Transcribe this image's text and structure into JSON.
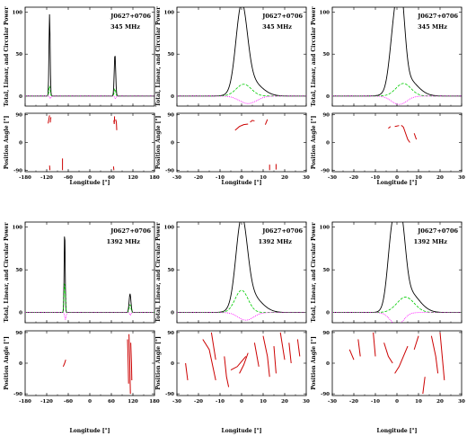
{
  "chart_data": [
    {
      "type": "line",
      "source": "J0627+0706",
      "frequency": "345 MHz",
      "xlim": [
        -180,
        180
      ],
      "xticks": [
        -180,
        -120,
        -60,
        0,
        60,
        120,
        180
      ],
      "xlabel": "Longitude [°]",
      "top": {
        "ylabel": "Total, Linear, and Circular Power",
        "ylim": [
          -12,
          106
        ],
        "yticks": [
          0,
          50,
          100
        ],
        "series": [
          {
            "name": "",
            "color": "#000000",
            "style": "solid",
            "components": [
              {
                "c": -112,
                "w": 1.6,
                "a": 98
              },
              {
                "c": 70,
                "w": 2.0,
                "a": 50
              }
            ]
          },
          {
            "name": "",
            "color": "#00cc00",
            "style": "dashed",
            "components": [
              {
                "c": -112,
                "w": 1.8,
                "a": 12
              },
              {
                "c": 70,
                "w": 2.0,
                "a": 9
              }
            ]
          },
          {
            "name": "",
            "color": "#ff00ff",
            "style": "dotted",
            "components": [
              {
                "c": -110,
                "w": 2.0,
                "a": -3
              },
              {
                "c": 71,
                "w": 2.0,
                "a": -3
              }
            ]
          }
        ]
      },
      "bottom": {
        "ylabel": "Position Angle [°]",
        "ylim": [
          -95,
          95
        ],
        "yticks": [
          -90,
          0,
          90
        ],
        "pa_segments": [
          [
            [
              -116,
              62
            ],
            [
              -114,
              75
            ],
            [
              -112,
              88
            ]
          ],
          [
            [
              -110,
              65
            ],
            [
              -109,
              78
            ],
            [
              -108,
              82
            ]
          ],
          [
            [
              -112,
              -75
            ],
            [
              -111,
              -90
            ]
          ],
          [
            [
              -76,
              -52
            ],
            [
              -76,
              -90
            ]
          ],
          [
            [
              67,
              72
            ],
            [
              68,
              60
            ],
            [
              69,
              85
            ]
          ],
          [
            [
              72,
              75
            ],
            [
              74,
              65
            ],
            [
              75,
              40
            ]
          ],
          [
            [
              66,
              -78
            ],
            [
              67,
              -90
            ]
          ]
        ]
      }
    },
    {
      "type": "line",
      "source": "J0627+0706",
      "frequency": "345 MHz",
      "xlim": [
        -30,
        30
      ],
      "xticks": [
        -30,
        -20,
        -10,
        0,
        10,
        20,
        30
      ],
      "xlabel": "Longitude [°]",
      "top": {
        "ylabel": "Total, Linear, and Circular Power",
        "ylim": [
          -12,
          106
        ],
        "yticks": [
          0,
          50,
          100
        ],
        "series": [
          {
            "name": "",
            "color": "#000000",
            "style": "solid",
            "components": [
              {
                "c": 0,
                "w": 2.6,
                "a": 98
              },
              {
                "c": 4,
                "w": 5,
                "a": 18
              }
            ]
          },
          {
            "name": "",
            "color": "#00cc00",
            "style": "dashed",
            "components": [
              {
                "c": 1,
                "w": 3.5,
                "a": 14
              }
            ]
          },
          {
            "name": "",
            "color": "#ff00ff",
            "style": "dotted",
            "components": [
              {
                "c": 3,
                "w": 4,
                "a": -9
              }
            ]
          }
        ]
      },
      "bottom": {
        "ylabel": "Position Angle [°]",
        "ylim": [
          -95,
          95
        ],
        "yticks": [
          -90,
          0,
          90
        ],
        "pa_segments": [
          [
            [
              -3,
              40
            ],
            [
              -1,
              52
            ],
            [
              1,
              58
            ],
            [
              3,
              60
            ]
          ],
          [
            [
              4,
              66
            ],
            [
              5,
              72
            ],
            [
              6,
              70
            ]
          ],
          [
            [
              11,
              58
            ],
            [
              12,
              75
            ]
          ],
          [
            [
              13,
              -72
            ],
            [
              13,
              -90
            ]
          ],
          [
            [
              16,
              -70
            ],
            [
              16,
              -88
            ]
          ]
        ]
      }
    },
    {
      "type": "line",
      "source": "J0627+0706",
      "frequency": "345 MHz",
      "xlim": [
        -30,
        30
      ],
      "xticks": [
        -30,
        -20,
        -10,
        0,
        10,
        20,
        30
      ],
      "xlabel": "Longitude [°]",
      "top": {
        "ylabel": "Total, Linear, and Circular Power",
        "ylim": [
          -12,
          106
        ],
        "yticks": [
          0,
          50,
          100
        ],
        "series": [
          {
            "name": "",
            "color": "#000000",
            "style": "solid",
            "components": [
              {
                "c": -1,
                "w": 2.2,
                "a": 75
              },
              {
                "c": 2,
                "w": 1.8,
                "a": 80
              },
              {
                "c": 4,
                "w": 5,
                "a": 22
              }
            ]
          },
          {
            "name": "",
            "color": "#00cc00",
            "style": "dashed",
            "components": [
              {
                "c": 3,
                "w": 3.5,
                "a": 15
              }
            ]
          },
          {
            "name": "",
            "color": "#ff00ff",
            "style": "dotted",
            "components": [
              {
                "c": 1,
                "w": 3.5,
                "a": -10
              }
            ]
          }
        ]
      },
      "bottom": {
        "ylabel": "Position Angle [°]",
        "ylim": [
          -95,
          95
        ],
        "yticks": [
          -90,
          0,
          90
        ],
        "pa_segments": [
          [
            [
              -4,
              46
            ],
            [
              -3,
              52
            ]
          ],
          [
            [
              -1,
              52
            ],
            [
              1,
              55
            ]
          ],
          [
            [
              2,
              56
            ],
            [
              3,
              50
            ],
            [
              4,
              30
            ],
            [
              5,
              10
            ],
            [
              6,
              0
            ]
          ],
          [
            [
              8,
              30
            ],
            [
              9,
              10
            ]
          ]
        ]
      }
    },
    {
      "type": "line",
      "source": "J0627+0706",
      "frequency": "1392 MHz",
      "xlim": [
        -180,
        180
      ],
      "xticks": [
        -180,
        -120,
        -60,
        0,
        60,
        120,
        180
      ],
      "xlabel": "Longitude [°]",
      "top": {
        "ylabel": "Total, Linear, and Circular Power",
        "ylim": [
          -12,
          106
        ],
        "yticks": [
          0,
          50,
          100
        ],
        "series": [
          {
            "name": "",
            "color": "#000000",
            "style": "solid",
            "components": [
              {
                "c": -70,
                "w": 1.4,
                "a": 98
              },
              {
                "c": 112,
                "w": 2.5,
                "a": 22
              }
            ]
          },
          {
            "name": "",
            "color": "#00cc00",
            "style": "dashed",
            "components": [
              {
                "c": -70,
                "w": 1.8,
                "a": 35
              },
              {
                "c": 112,
                "w": 2.5,
                "a": 9
              }
            ]
          },
          {
            "name": "",
            "color": "#ff00ff",
            "style": "dotted",
            "components": [
              {
                "c": -68,
                "w": 2.0,
                "a": -8
              },
              {
                "c": 113,
                "w": 2.0,
                "a": -3
              }
            ]
          }
        ]
      },
      "bottom": {
        "ylabel": "Position Angle [°]",
        "ylim": [
          -95,
          95
        ],
        "yticks": [
          -90,
          0,
          90
        ],
        "pa_segments": [
          [
            [
              -74,
              -10
            ],
            [
              -70,
              0
            ],
            [
              -67,
              10
            ]
          ],
          [
            [
              105,
              70
            ],
            [
              106,
              35
            ],
            [
              107,
              -10
            ],
            [
              108,
              -60
            ]
          ],
          [
            [
              109,
              85
            ],
            [
              111,
              20
            ],
            [
              112,
              -40
            ],
            [
              113,
              -90
            ]
          ],
          [
            [
              114,
              60
            ],
            [
              116,
              0
            ],
            [
              117,
              -50
            ]
          ]
        ]
      }
    },
    {
      "type": "line",
      "source": "J0627+0706",
      "frequency": "1392 MHz",
      "xlim": [
        -30,
        30
      ],
      "xticks": [
        -30,
        -20,
        -10,
        0,
        10,
        20,
        30
      ],
      "xlabel": "Longitude [°]",
      "top": {
        "ylabel": "Total, Linear, and Circular Power",
        "ylim": [
          -12,
          106
        ],
        "yticks": [
          0,
          50,
          100
        ],
        "series": [
          {
            "name": "",
            "color": "#000000",
            "style": "solid",
            "components": [
              {
                "c": 0,
                "w": 2.6,
                "a": 98
              },
              {
                "c": 4,
                "w": 5,
                "a": 20
              }
            ]
          },
          {
            "name": "",
            "color": "#00cc00",
            "style": "dashed",
            "components": [
              {
                "c": 0,
                "w": 3.0,
                "a": 26
              }
            ]
          },
          {
            "name": "",
            "color": "#ff00ff",
            "style": "dotted",
            "components": [
              {
                "c": 2,
                "w": 3.5,
                "a": -9
              }
            ]
          }
        ]
      },
      "bottom": {
        "ylabel": "Position Angle [°]",
        "ylim": [
          -95,
          95
        ],
        "yticks": [
          -90,
          0,
          90
        ],
        "pa_segments": [
          [
            [
              -26,
              0
            ],
            [
              -25,
              -50
            ]
          ],
          [
            [
              -18,
              70
            ],
            [
              -15,
              40
            ],
            [
              -12,
              -50
            ]
          ],
          [
            [
              -14,
              90
            ],
            [
              -12,
              10
            ]
          ],
          [
            [
              -8,
              20
            ],
            [
              -7,
              -40
            ],
            [
              -6,
              -70
            ]
          ],
          [
            [
              -5,
              -20
            ],
            [
              -2,
              -10
            ],
            [
              0,
              5
            ],
            [
              2,
              20
            ]
          ],
          [
            [
              -1,
              -30
            ],
            [
              1,
              -5
            ],
            [
              3,
              30
            ]
          ],
          [
            [
              6,
              60
            ],
            [
              8,
              -10
            ]
          ],
          [
            [
              10,
              80
            ],
            [
              12,
              20
            ],
            [
              13,
              -40
            ]
          ],
          [
            [
              15,
              50
            ],
            [
              16,
              -30
            ]
          ],
          [
            [
              18,
              90
            ],
            [
              20,
              10
            ]
          ],
          [
            [
              22,
              60
            ],
            [
              23,
              0
            ]
          ],
          [
            [
              26,
              70
            ],
            [
              27,
              20
            ]
          ]
        ]
      }
    },
    {
      "type": "line",
      "source": "J0627+0706",
      "frequency": "1392 MHz",
      "xlim": [
        -30,
        30
      ],
      "xticks": [
        -30,
        -20,
        -10,
        0,
        10,
        20,
        30
      ],
      "xlabel": "Longitude [°]",
      "top": {
        "ylabel": "Total, Linear, and Circular Power",
        "ylim": [
          -12,
          106
        ],
        "yticks": [
          0,
          50,
          100
        ],
        "series": [
          {
            "name": "",
            "color": "#000000",
            "style": "solid",
            "components": [
              {
                "c": -2,
                "w": 2.2,
                "a": 90
              },
              {
                "c": 2,
                "w": 2.0,
                "a": 80
              },
              {
                "c": 5,
                "w": 5,
                "a": 25
              }
            ]
          },
          {
            "name": "",
            "color": "#00cc00",
            "style": "dashed",
            "components": [
              {
                "c": 4,
                "w": 4,
                "a": 18
              }
            ]
          },
          {
            "name": "",
            "color": "#ff00ff",
            "style": "dotted",
            "components": [
              {
                "c": 0,
                "w": 3,
                "a": -15
              }
            ]
          }
        ]
      },
      "bottom": {
        "ylabel": "Position Angle [°]",
        "ylim": [
          -95,
          95
        ],
        "yticks": [
          -90,
          0,
          90
        ],
        "pa_segments": [
          [
            [
              -22,
              40
            ],
            [
              -20,
              10
            ]
          ],
          [
            [
              -18,
              70
            ],
            [
              -17,
              20
            ]
          ],
          [
            [
              -11,
              90
            ],
            [
              -10,
              20
            ]
          ],
          [
            [
              -6,
              60
            ],
            [
              -4,
              20
            ],
            [
              -2,
              0
            ]
          ],
          [
            [
              -1,
              -30
            ],
            [
              1,
              -10
            ],
            [
              3,
              20
            ],
            [
              5,
              50
            ]
          ],
          [
            [
              8,
              40
            ],
            [
              10,
              80
            ]
          ],
          [
            [
              12,
              -90
            ],
            [
              13,
              -40
            ]
          ],
          [
            [
              16,
              80
            ],
            [
              18,
              20
            ],
            [
              19,
              -30
            ]
          ],
          [
            [
              20,
              90
            ],
            [
              22,
              -50
            ]
          ]
        ]
      }
    }
  ]
}
